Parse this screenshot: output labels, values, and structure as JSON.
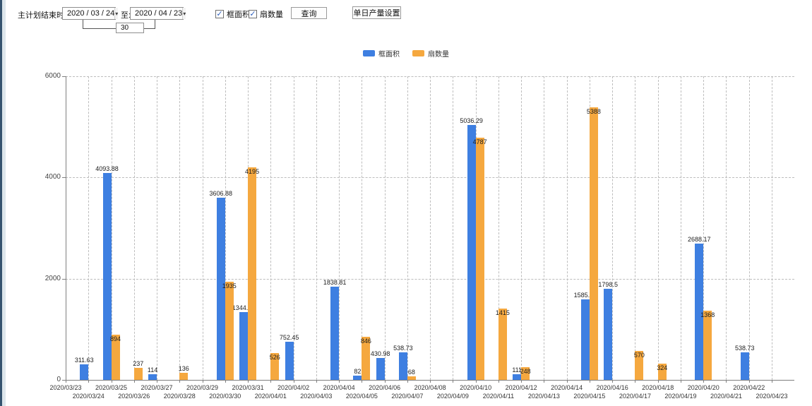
{
  "toolbar": {
    "plan_end_label": "主计划结束时间:",
    "date_from": "2020 / 03 / 24",
    "to_label": "至:",
    "date_to": "2020 / 04 / 23",
    "span_days": "30",
    "checkbox_frame_area": {
      "label": "框面积",
      "checked": true
    },
    "checkbox_fan_count": {
      "label": "扇数量",
      "checked": true
    },
    "query_button": "查询",
    "daily_output_button": "单日产量设置",
    "check_glyph": "✓",
    "dropdown_glyph": "▾"
  },
  "chart_data": {
    "type": "bar",
    "title": "",
    "xlabel": "",
    "ylabel": "",
    "ylim": [
      0,
      6000
    ],
    "yticks": [
      0,
      2000,
      4000,
      6000
    ],
    "grid": true,
    "legend_position": "top-center",
    "categories": [
      "2020/03/23",
      "2020/03/24",
      "2020/03/25",
      "2020/03/26",
      "2020/03/27",
      "2020/03/28",
      "2020/03/29",
      "2020/03/30",
      "2020/03/31",
      "2020/04/01",
      "2020/04/02",
      "2020/04/03",
      "2020/04/04",
      "2020/04/05",
      "2020/04/06",
      "2020/04/07",
      "2020/04/08",
      "2020/04/09",
      "2020/04/10",
      "2020/04/11",
      "2020/04/12",
      "2020/04/13",
      "2020/04/14",
      "2020/04/15",
      "2020/04/16",
      "2020/04/17",
      "2020/04/18",
      "2020/04/19",
      "2020/04/20",
      "2020/04/21",
      "2020/04/22",
      "2020/04/23"
    ],
    "series": [
      {
        "id": "frame-area",
        "name": "框面积",
        "color": "#3e7fe1",
        "values": [
          null,
          311.63,
          4093.88,
          null,
          114,
          null,
          null,
          3606.88,
          1344.95,
          null,
          752.45,
          null,
          1838.81,
          82,
          430.98,
          538.73,
          null,
          null,
          5036.29,
          null,
          111,
          null,
          null,
          1585.96,
          1798.5,
          null,
          null,
          null,
          2688.17,
          null,
          538.73,
          null
        ]
      },
      {
        "id": "fan-count",
        "name": "扇数量",
        "color": "#f5a83f",
        "values": [
          null,
          null,
          894,
          237,
          null,
          136,
          null,
          1935,
          4195,
          526,
          null,
          null,
          null,
          846,
          null,
          68,
          null,
          null,
          4787,
          1415,
          248,
          null,
          null,
          5388,
          null,
          570,
          324,
          null,
          1368,
          null,
          null,
          null
        ]
      }
    ]
  }
}
